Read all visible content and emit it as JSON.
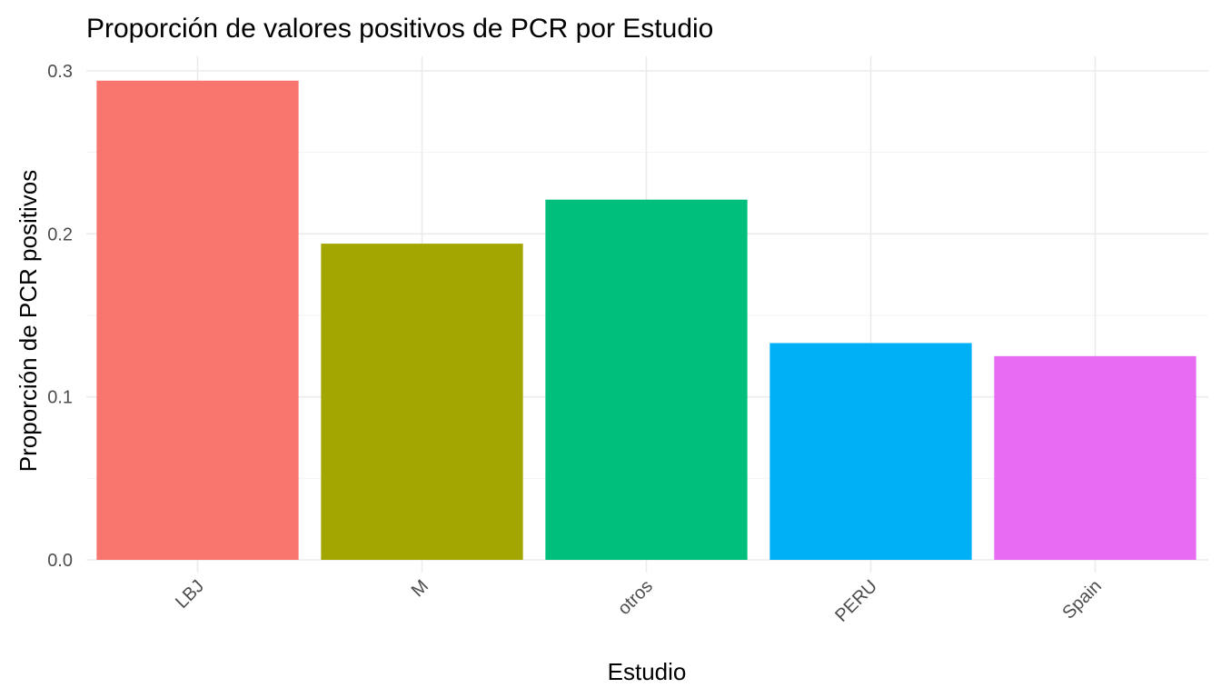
{
  "chart_data": {
    "type": "bar",
    "title": "Proporción de valores positivos de PCR por Estudio",
    "xlabel": "Estudio",
    "ylabel": "Proporción de PCR positivos",
    "categories": [
      "LBJ",
      "M",
      "otros",
      "PERU",
      "Spain"
    ],
    "values": [
      0.294,
      0.194,
      0.221,
      0.133,
      0.125
    ],
    "colors": [
      "#F8766D",
      "#A3A500",
      "#00BF7D",
      "#00B0F6",
      "#E76BF3"
    ],
    "ylim": [
      0,
      0.3
    ],
    "yticks": [
      0.0,
      0.1,
      0.2,
      0.3
    ],
    "ytick_labels": [
      "0.0",
      "0.1",
      "0.2",
      "0.3"
    ],
    "grid": true,
    "legend": "none"
  }
}
